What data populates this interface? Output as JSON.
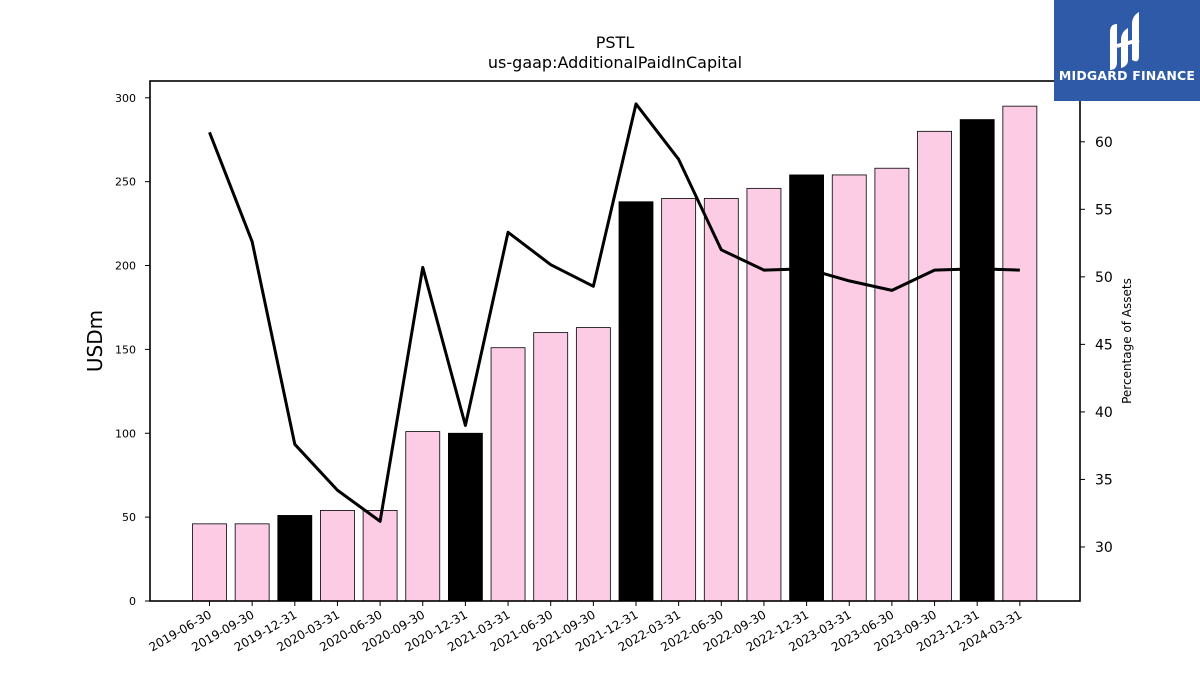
{
  "chart_data": {
    "type": "bar+line",
    "title": "PSTL",
    "subtitle": "us-gaap:AdditionalPaidInCapital",
    "ylabel": "USDm",
    "y2label": "Percentage of Assets",
    "ylim": [
      0,
      310
    ],
    "y2lim": [
      26.0,
      64.5
    ],
    "yticks": [
      0,
      50,
      100,
      150,
      200,
      250,
      300
    ],
    "y2ticks": [
      30,
      35,
      40,
      45,
      50,
      55,
      60
    ],
    "categories": [
      "2019-06-30",
      "2019-09-30",
      "2019-12-31",
      "2020-03-31",
      "2020-06-30",
      "2020-09-30",
      "2020-12-31",
      "2021-03-31",
      "2021-06-30",
      "2021-09-30",
      "2021-12-31",
      "2022-03-31",
      "2022-06-30",
      "2022-09-30",
      "2022-12-31",
      "2023-03-31",
      "2023-06-30",
      "2023-09-30",
      "2023-12-31",
      "2024-03-31"
    ],
    "series": [
      {
        "kind": "bar",
        "axis": "left",
        "values": [
          46,
          46,
          51,
          54,
          54,
          101,
          100,
          151,
          160,
          163,
          238,
          240,
          240,
          246,
          254,
          254,
          258,
          280,
          287,
          295
        ],
        "highlight": [
          false,
          false,
          true,
          false,
          false,
          false,
          true,
          false,
          false,
          false,
          true,
          false,
          false,
          false,
          true,
          false,
          false,
          false,
          true,
          false
        ]
      },
      {
        "kind": "line",
        "axis": "right",
        "values": [
          60.7,
          52.6,
          37.6,
          34.2,
          31.9,
          50.7,
          39.0,
          53.3,
          50.9,
          49.3,
          62.8,
          58.7,
          52.0,
          50.5,
          50.6,
          49.7,
          49.0,
          50.5,
          50.6,
          50.5
        ]
      }
    ],
    "colors": {
      "bar": "#fccbe4",
      "highlight": "#000000",
      "edge": "#000000",
      "line": "#000000"
    },
    "grid": false,
    "legend": "none"
  },
  "logo": {
    "text": "MIDGARD FINANCE",
    "icon": "midgard-logo-mark",
    "background": "#2e5aa8"
  }
}
